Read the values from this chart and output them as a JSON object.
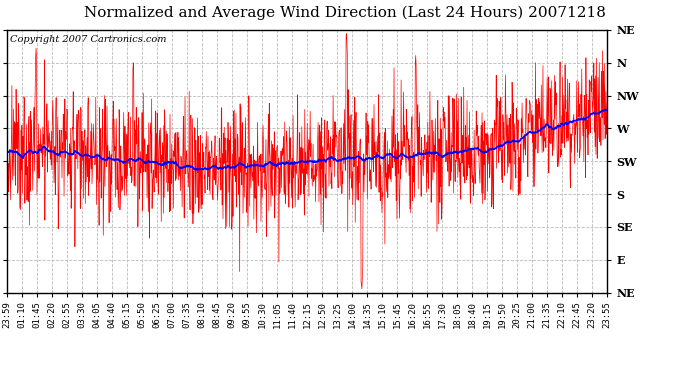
{
  "title": "Normalized and Average Wind Direction (Last 24 Hours) 20071218",
  "copyright": "Copyright 2007 Cartronics.com",
  "background_color": "#ffffff",
  "plot_bg_color": "#ffffff",
  "grid_color": "#bbbbbb",
  "red_line_color": "#ff0000",
  "blue_line_color": "#0000ff",
  "title_fontsize": 11,
  "copyright_fontsize": 7,
  "xtick_fontsize": 6.5,
  "ytick_fontsize": 8,
  "direction_ticks": [
    45,
    90,
    135,
    180,
    225,
    270,
    315,
    360,
    405
  ],
  "direction_labels": [
    "NE",
    "E",
    "SE",
    "S",
    "SW",
    "W",
    "NW",
    "N",
    "NE"
  ],
  "ylim_min": 45,
  "ylim_max": 405,
  "time_labels": [
    "23:59",
    "01:10",
    "01:45",
    "02:20",
    "02:55",
    "03:30",
    "04:05",
    "04:40",
    "05:15",
    "05:50",
    "06:25",
    "07:00",
    "07:35",
    "08:10",
    "08:45",
    "09:20",
    "09:55",
    "10:30",
    "11:05",
    "11:40",
    "12:15",
    "12:50",
    "13:25",
    "14:00",
    "14:35",
    "15:10",
    "15:45",
    "16:20",
    "16:55",
    "17:30",
    "18:05",
    "18:40",
    "19:15",
    "19:50",
    "20:25",
    "21:00",
    "21:35",
    "22:10",
    "22:45",
    "23:20",
    "23:55"
  ]
}
